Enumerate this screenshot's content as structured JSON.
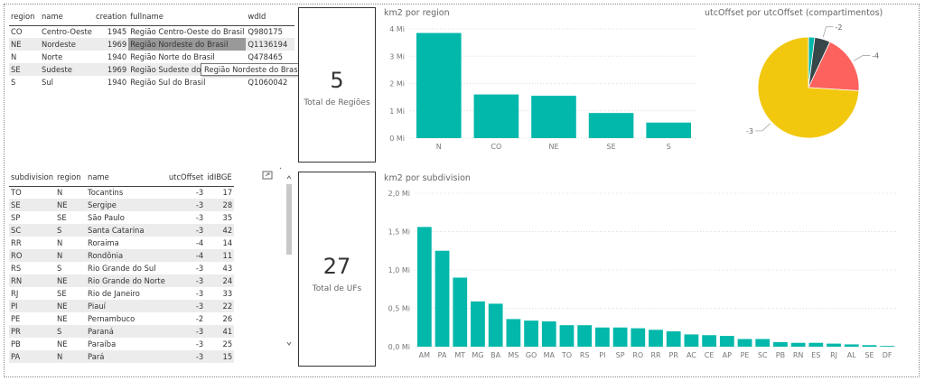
{
  "regions_table": {
    "columns": [
      "region",
      "name",
      "creation",
      "fullname",
      "wdId"
    ],
    "rows": [
      [
        "CO",
        "Centro-Oeste",
        "1945",
        "Região Centro-Oeste do Brasil",
        "Q980175"
      ],
      [
        "NE",
        "Nordeste",
        "1969",
        "Região Nordeste do Brasil",
        "Q1136194"
      ],
      [
        "N",
        "Norte",
        "1940",
        "Região Norte do Brasil",
        "Q478465"
      ],
      [
        "SE",
        "Sudeste",
        "1969",
        "Região Sudeste do Brasil",
        "Q119475"
      ],
      [
        "S",
        "Sul",
        "1940",
        "Região Sul do Brasil",
        "Q1060042"
      ]
    ],
    "tooltip": "Região Nordeste do Brasil"
  },
  "subdivision_table": {
    "columns": [
      "subdivision",
      "region",
      "name",
      "utcOffset",
      "idIBGE"
    ],
    "rows": [
      [
        "TO",
        "N",
        "Tocantins",
        "-3",
        "17"
      ],
      [
        "SE",
        "NE",
        "Sergipe",
        "-3",
        "28"
      ],
      [
        "SP",
        "SE",
        "São Paulo",
        "-3",
        "35"
      ],
      [
        "SC",
        "S",
        "Santa Catarina",
        "-3",
        "42"
      ],
      [
        "RR",
        "N",
        "Roraima",
        "-4",
        "14"
      ],
      [
        "RO",
        "N",
        "Rondônia",
        "-4",
        "11"
      ],
      [
        "RS",
        "S",
        "Rio Grande do Sul",
        "-3",
        "43"
      ],
      [
        "RN",
        "NE",
        "Rio Grande do Norte",
        "-3",
        "24"
      ],
      [
        "RJ",
        "SE",
        "Rio de Janeiro",
        "-3",
        "33"
      ],
      [
        "PI",
        "NE",
        "Piauí",
        "-3",
        "22"
      ],
      [
        "PE",
        "NE",
        "Pernambuco",
        "-2",
        "26"
      ],
      [
        "PR",
        "S",
        "Paraná",
        "-3",
        "41"
      ],
      [
        "PB",
        "NE",
        "Paraíba",
        "-3",
        "25"
      ],
      [
        "PA",
        "N",
        "Pará",
        "-3",
        "15"
      ]
    ]
  },
  "cards": {
    "regions": {
      "value": "5",
      "label": "Total de Regiões"
    },
    "ufs": {
      "value": "27",
      "label": "Total de UFs"
    }
  },
  "icons": {
    "focus": "focus-mode-icon",
    "more": "more-options-icon",
    "scroll_up": "chevron-up-icon",
    "scroll_down": "chevron-down-icon"
  },
  "colors": {
    "bar": "#01b8aa",
    "pie_yellow": "#f2c80f",
    "pie_red": "#fd625e",
    "pie_dark": "#374649",
    "pie_teal": "#01b8aa"
  },
  "chart_data": [
    {
      "type": "bar",
      "title": "km2 por region",
      "categories": [
        "N",
        "CO",
        "NE",
        "SE",
        "S"
      ],
      "values": [
        3.85,
        1.6,
        1.55,
        0.92,
        0.57
      ],
      "ylim": [
        0,
        4
      ],
      "yticks": [
        0,
        1,
        2,
        3,
        4
      ],
      "ytick_labels": [
        "0 Mi",
        "1 Mi",
        "2 Mi",
        "3 Mi",
        "4 Mi"
      ],
      "grid": true
    },
    {
      "type": "pie",
      "title": "utcOffset por utcOffset (compartimentos)",
      "labels": [
        "-3",
        "-4",
        "-2",
        ""
      ],
      "values": [
        74,
        19,
        5,
        2
      ],
      "colors": [
        "#f2c80f",
        "#fd625e",
        "#374649",
        "#01b8aa"
      ]
    },
    {
      "type": "bar",
      "title": "km2 por subdivision",
      "categories": [
        "AM",
        "PA",
        "MT",
        "MG",
        "BA",
        "MS",
        "GO",
        "MA",
        "TO",
        "RS",
        "PI",
        "SP",
        "RO",
        "RR",
        "PR",
        "AC",
        "CE",
        "AP",
        "PE",
        "SC",
        "PB",
        "RN",
        "ES",
        "RJ",
        "AL",
        "SE",
        "DF"
      ],
      "values": [
        1.56,
        1.25,
        0.9,
        0.59,
        0.56,
        0.36,
        0.34,
        0.33,
        0.28,
        0.28,
        0.25,
        0.25,
        0.24,
        0.22,
        0.2,
        0.16,
        0.15,
        0.14,
        0.1,
        0.1,
        0.06,
        0.05,
        0.05,
        0.04,
        0.03,
        0.02,
        0.01
      ],
      "ylim": [
        0,
        2
      ],
      "yticks": [
        0,
        0.5,
        1,
        1.5,
        2
      ],
      "ytick_labels": [
        "0,0 Mi",
        "0,5 Mi",
        "1,0 Mi",
        "1,5 Mi",
        "2,0 Mi"
      ],
      "grid": true
    }
  ]
}
